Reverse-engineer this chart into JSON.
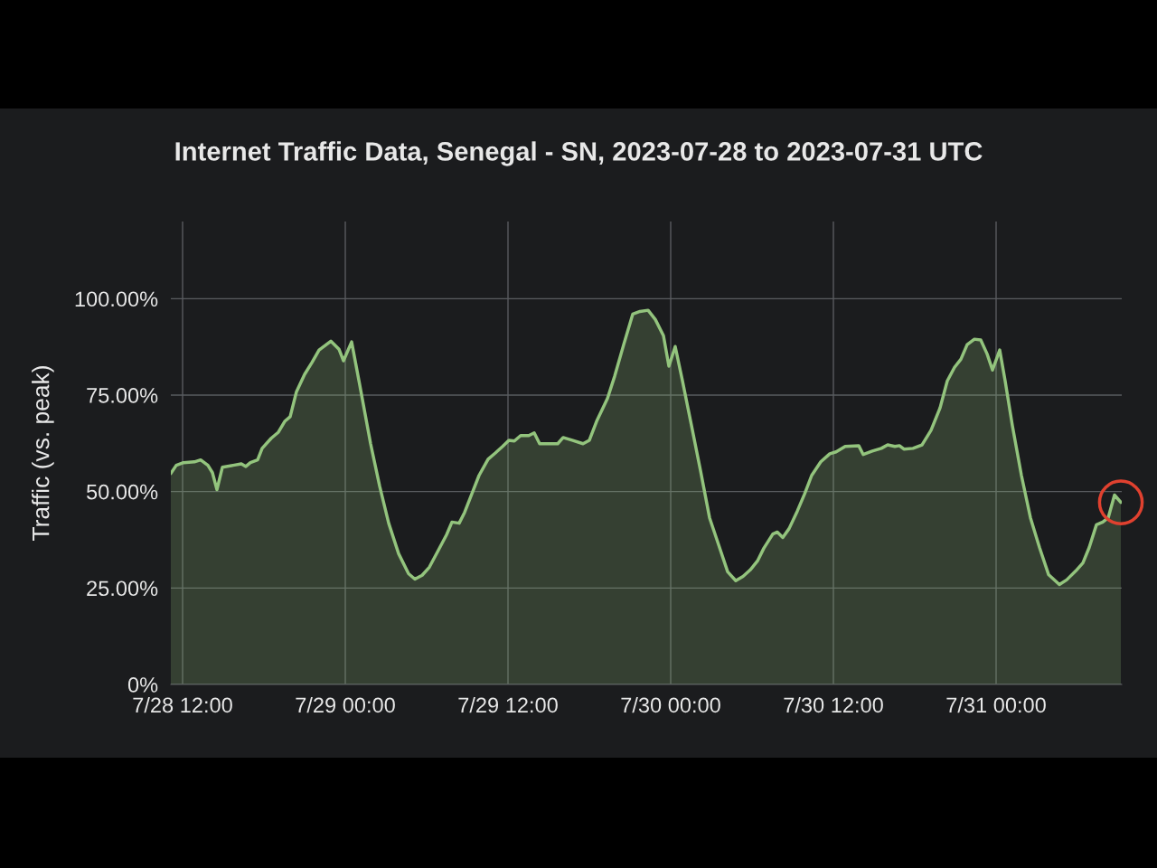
{
  "chart_data": {
    "type": "area",
    "title": "Internet Traffic Data, Senegal - SN, 2023-07-28 to 2023-07-31 UTC",
    "ylabel": "Traffic (vs. peak)",
    "color": "#93c47d",
    "grid": true,
    "x": [
      "2023-07-28T11:08",
      "2023-07-28T11:32",
      "2023-07-28T12:04",
      "2023-07-28T12:52",
      "2023-07-28T13:20",
      "2023-07-28T13:52",
      "2023-07-28T14:12",
      "2023-07-28T14:32",
      "2023-07-28T14:56",
      "2023-07-28T15:44",
      "2023-07-28T16:20",
      "2023-07-28T16:40",
      "2023-07-28T17:00",
      "2023-07-28T17:32",
      "2023-07-28T17:52",
      "2023-07-28T18:32",
      "2023-07-28T19:04",
      "2023-07-28T19:32",
      "2023-07-28T19:56",
      "2023-07-28T20:24",
      "2023-07-28T21:00",
      "2023-07-28T21:32",
      "2023-07-28T22:04",
      "2023-07-28T22:56",
      "2023-07-28T23:32",
      "2023-07-28T23:52",
      "2023-07-29T00:28",
      "2023-07-29T01:04",
      "2023-07-29T01:52",
      "2023-07-29T02:32",
      "2023-07-29T03:12",
      "2023-07-29T03:56",
      "2023-07-29T04:40",
      "2023-07-29T05:08",
      "2023-07-29T05:40",
      "2023-07-29T06:12",
      "2023-07-29T06:52",
      "2023-07-29T07:28",
      "2023-07-29T07:52",
      "2023-07-29T08:24",
      "2023-07-29T08:48",
      "2023-07-29T09:24",
      "2023-07-29T09:52",
      "2023-07-29T10:32",
      "2023-07-29T11:04",
      "2023-07-29T11:36",
      "2023-07-29T12:04",
      "2023-07-29T12:28",
      "2023-07-29T12:56",
      "2023-07-29T13:32",
      "2023-07-29T13:56",
      "2023-07-29T14:20",
      "2023-07-29T15:12",
      "2023-07-29T15:40",
      "2023-07-29T16:04",
      "2023-07-29T16:44",
      "2023-07-29T17:32",
      "2023-07-29T18:00",
      "2023-07-29T18:32",
      "2023-07-29T19:20",
      "2023-07-29T19:52",
      "2023-07-29T20:32",
      "2023-07-29T21:12",
      "2023-07-29T21:44",
      "2023-07-29T22:20",
      "2023-07-29T22:52",
      "2023-07-29T23:28",
      "2023-07-29T23:52",
      "2023-07-30T00:20",
      "2023-07-30T00:52",
      "2023-07-30T01:32",
      "2023-07-30T02:12",
      "2023-07-30T02:52",
      "2023-07-30T03:32",
      "2023-07-30T04:12",
      "2023-07-30T04:48",
      "2023-07-30T05:20",
      "2023-07-30T05:52",
      "2023-07-30T06:24",
      "2023-07-30T06:52",
      "2023-07-30T07:32",
      "2023-07-30T07:52",
      "2023-07-30T08:16",
      "2023-07-30T08:44",
      "2023-07-30T09:20",
      "2023-07-30T09:52",
      "2023-07-30T10:24",
      "2023-07-30T11:04",
      "2023-07-30T11:44",
      "2023-07-30T12:12",
      "2023-07-30T12:52",
      "2023-07-30T13:52",
      "2023-07-30T14:12",
      "2023-07-30T14:52",
      "2023-07-30T15:32",
      "2023-07-30T16:00",
      "2023-07-30T16:32",
      "2023-07-30T16:52",
      "2023-07-30T17:12",
      "2023-07-30T17:52",
      "2023-07-30T18:32",
      "2023-07-30T19:12",
      "2023-07-30T19:52",
      "2023-07-30T20:24",
      "2023-07-30T20:56",
      "2023-07-30T21:24",
      "2023-07-30T21:52",
      "2023-07-30T22:24",
      "2023-07-30T22:52",
      "2023-07-30T23:20",
      "2023-07-30T23:44",
      "2023-07-31T00:16",
      "2023-07-31T00:40",
      "2023-07-31T01:12",
      "2023-07-31T01:52",
      "2023-07-31T02:32",
      "2023-07-31T03:12",
      "2023-07-31T03:52",
      "2023-07-31T04:40",
      "2023-07-31T05:12",
      "2023-07-31T05:52",
      "2023-07-31T06:24",
      "2023-07-31T06:52",
      "2023-07-31T07:24",
      "2023-07-31T07:52",
      "2023-07-31T08:16",
      "2023-07-31T08:44",
      "2023-07-31T09:12"
    ],
    "values": [
      54.7,
      56.8,
      57.5,
      57.7,
      58.2,
      56.8,
      54.9,
      50.5,
      56.3,
      56.8,
      57.2,
      56.5,
      57.5,
      58.2,
      61.2,
      63.8,
      65.4,
      68.2,
      69.4,
      75.9,
      80.4,
      83.4,
      86.7,
      89.0,
      86.9,
      83.9,
      88.8,
      77.6,
      62.4,
      51.4,
      41.8,
      33.9,
      28.7,
      27.3,
      28.3,
      30.4,
      34.8,
      38.8,
      42.1,
      41.8,
      44.6,
      50.0,
      54.2,
      58.4,
      60.0,
      61.7,
      63.3,
      63.1,
      64.5,
      64.5,
      65.2,
      62.4,
      62.4,
      62.4,
      64.0,
      63.3,
      62.4,
      63.3,
      68.2,
      74.1,
      79.9,
      88.1,
      96.0,
      96.7,
      97.0,
      94.6,
      90.4,
      82.5,
      87.6,
      78.7,
      67.1,
      55.4,
      43.2,
      36.2,
      29.2,
      26.9,
      28.0,
      29.7,
      32.0,
      35.3,
      39.0,
      39.5,
      38.1,
      40.4,
      44.9,
      49.3,
      54.2,
      57.7,
      59.8,
      60.3,
      61.7,
      61.9,
      59.6,
      60.5,
      61.2,
      62.1,
      61.7,
      61.9,
      61.0,
      61.2,
      62.1,
      65.9,
      71.7,
      78.7,
      82.2,
      84.3,
      88.1,
      89.5,
      89.3,
      85.7,
      81.5,
      86.7,
      78.7,
      67.1,
      54.2,
      43.2,
      35.5,
      28.5,
      25.9,
      27.1,
      29.4,
      31.5,
      35.5,
      41.4,
      42.1,
      43.2,
      49.1,
      47.2
    ],
    "xlim": [
      "2023-07-28T11:08",
      "2023-07-31T09:16"
    ],
    "xticks": [
      {
        "value": "2023-07-28T12:00",
        "label": "7/28 12:00"
      },
      {
        "value": "2023-07-29T00:00",
        "label": "7/29 00:00"
      },
      {
        "value": "2023-07-29T12:00",
        "label": "7/29 12:00"
      },
      {
        "value": "2023-07-30T00:00",
        "label": "7/30 00:00"
      },
      {
        "value": "2023-07-30T12:00",
        "label": "7/30 12:00"
      },
      {
        "value": "2023-07-31T00:00",
        "label": "7/31 00:00"
      }
    ],
    "ylim": [
      0,
      120
    ],
    "yticks": [
      {
        "value": 0,
        "label": "0%"
      },
      {
        "value": 25,
        "label": "25.00%"
      },
      {
        "value": 50,
        "label": "50.00%"
      },
      {
        "value": 75,
        "label": "75.00%"
      },
      {
        "value": 100,
        "label": "100.00%"
      }
    ]
  }
}
